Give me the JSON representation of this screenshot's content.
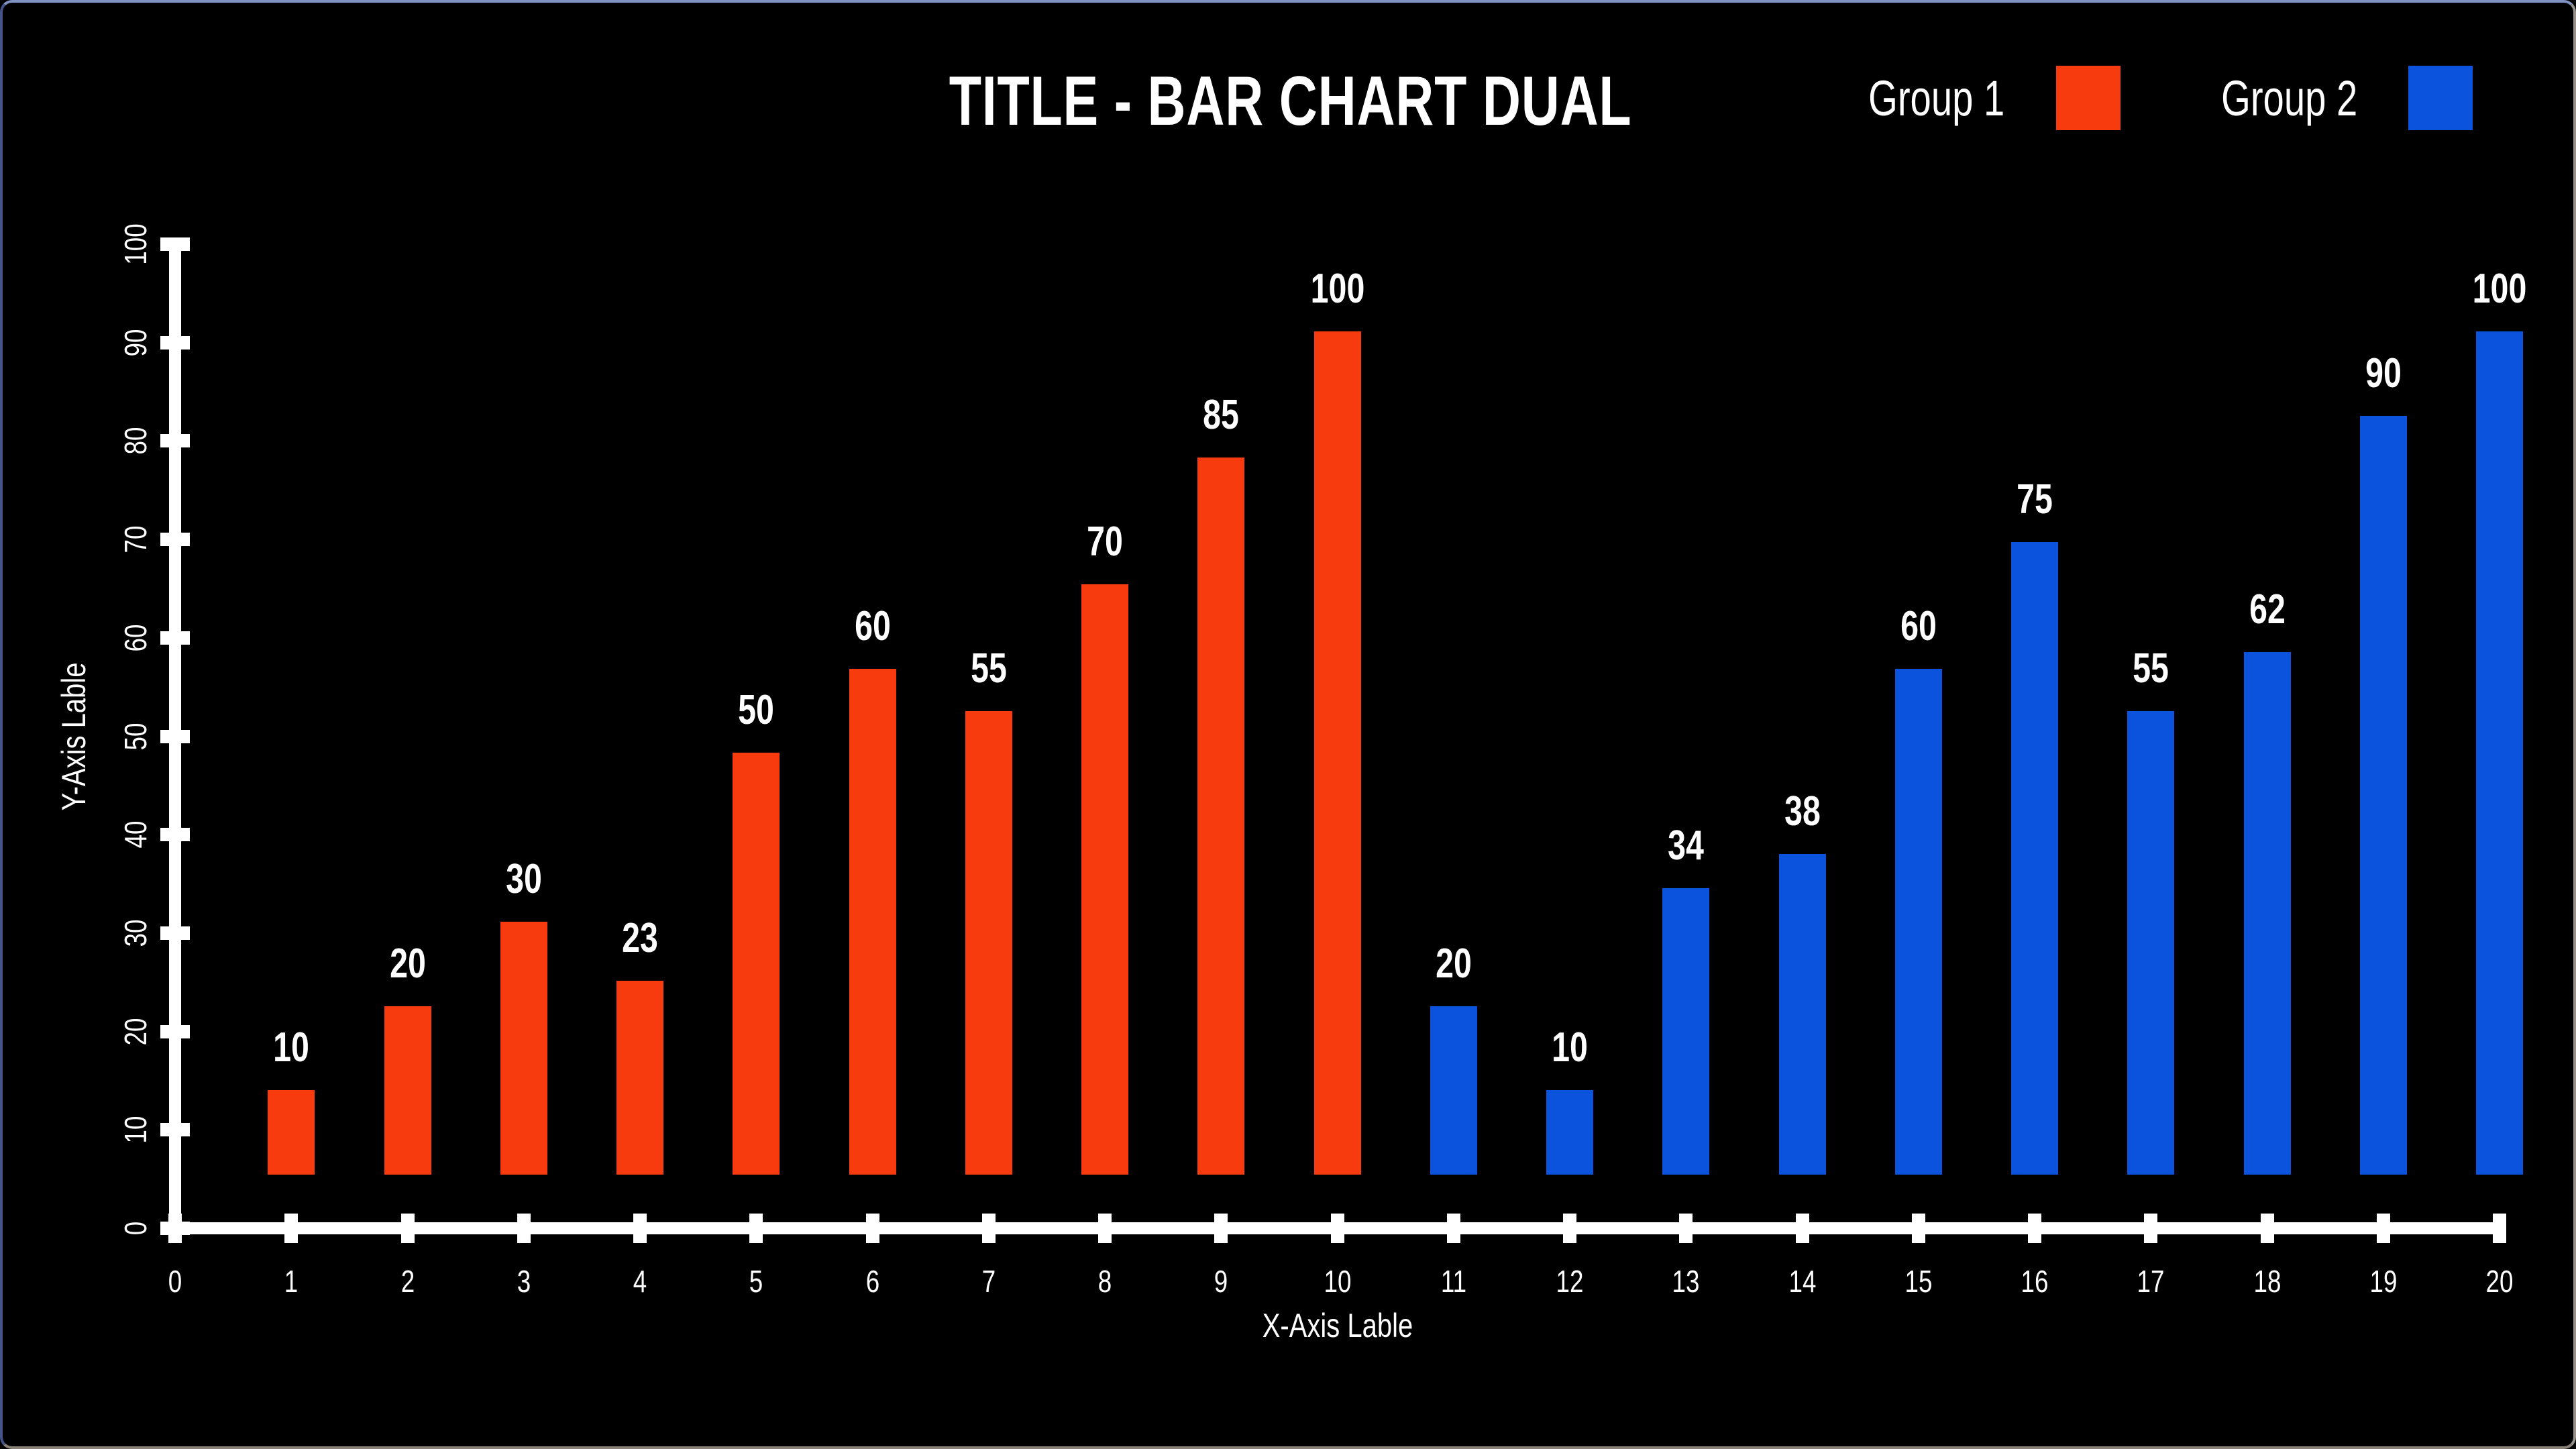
{
  "frame": {
    "background": "#000000",
    "border_top": "#7e93c2",
    "border_left": "#44548a",
    "border_bottom": "#8a8279",
    "border_right": "#96918b"
  },
  "chart_data": {
    "type": "bar",
    "title": "TITLE - BAR CHART DUAL",
    "xlabel": "X-Axis Lable",
    "ylabel": "Y-Axis Lable",
    "xlim": [
      0,
      20
    ],
    "ylim": [
      0,
      100
    ],
    "x_ticks": [
      0,
      1,
      2,
      3,
      4,
      5,
      6,
      7,
      8,
      9,
      10,
      11,
      12,
      13,
      14,
      15,
      16,
      17,
      18,
      19,
      20
    ],
    "y_ticks": [
      0,
      10,
      20,
      30,
      40,
      50,
      60,
      70,
      80,
      90,
      100
    ],
    "grid": false,
    "legend_position": "top-right",
    "background": "#000000",
    "axis_color": "#ffffff",
    "text_color": "#ffffff",
    "bar_value_labels": true,
    "series": [
      {
        "name": "Group 1",
        "color": "#f83b0e",
        "x": [
          1,
          2,
          3,
          4,
          5,
          6,
          7,
          8,
          9,
          10
        ],
        "values": [
          10,
          20,
          30,
          23,
          50,
          60,
          55,
          70,
          85,
          100
        ]
      },
      {
        "name": "Group 2",
        "color": "#0b53dc",
        "x": [
          11,
          12,
          13,
          14,
          15,
          16,
          17,
          18,
          19,
          20
        ],
        "values": [
          20,
          10,
          34,
          38,
          60,
          75,
          55,
          62,
          90,
          100
        ]
      }
    ]
  },
  "legend": {
    "items": [
      {
        "label": "Group 1",
        "color": "#f83b0e"
      },
      {
        "label": "Group 2",
        "color": "#0b53dc"
      }
    ]
  }
}
